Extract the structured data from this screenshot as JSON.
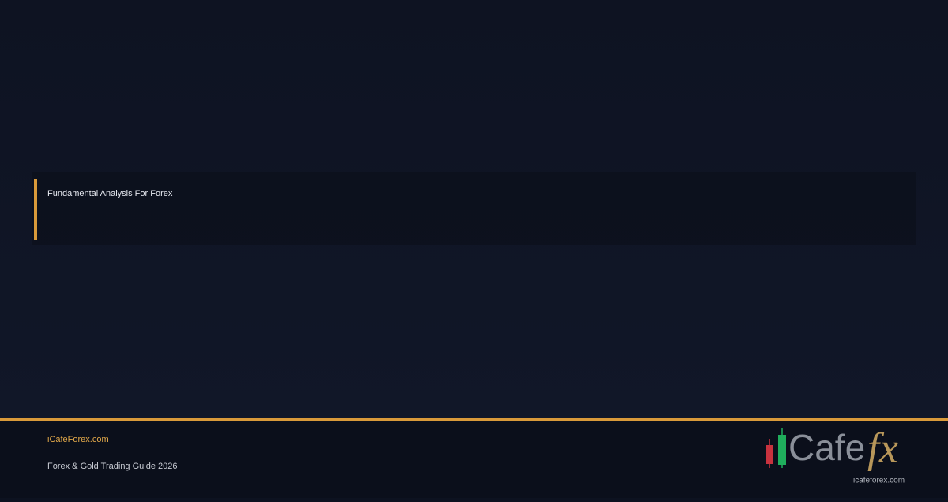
{
  "banner": {
    "title": "Fundamental Analysis For Forex",
    "site": "iCafeForex.com",
    "subtitle": "Forex & Gold Trading Guide 2026",
    "logo": {
      "word": "Cafe",
      "mark": "fx",
      "url": "icafeforex.com"
    }
  }
}
